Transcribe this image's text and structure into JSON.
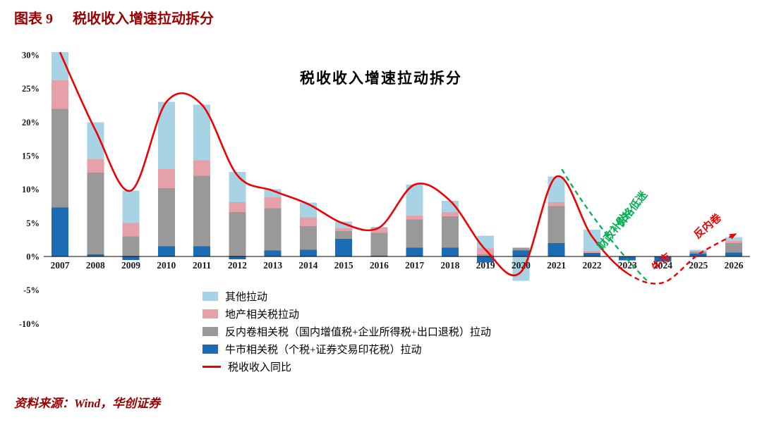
{
  "header": {
    "figure_label": "图表 9",
    "title": "税收收入增速拉动拆分"
  },
  "source": "资料来源：Wind，华创证券",
  "colors": {
    "accent_dark_red": "#990000",
    "line_red": "#F00000",
    "annotation_green": "#00B050",
    "bar_other": "#A8D3E4",
    "bar_property": "#E5A0A8",
    "bar_anti_involution": "#999999",
    "bar_bull_market": "#1B6CB5"
  },
  "chart_data": {
    "type": "bar",
    "subtype": "stacked-bar-with-line",
    "title": "税收收入增速拉动拆分",
    "categories": [
      "2007",
      "2008",
      "2009",
      "2010",
      "2011",
      "2012",
      "2013",
      "2014",
      "2015",
      "2016",
      "2017",
      "2018",
      "2019",
      "2020",
      "2021",
      "2022",
      "2023",
      "2024",
      "2025",
      "2026"
    ],
    "y_axis": {
      "min": -10,
      "max": 30,
      "step": 5,
      "tick_suffix": "%",
      "grid": false
    },
    "legend_position": "bottom-left",
    "series": [
      {
        "name": "其他拉动",
        "type": "bar",
        "color": "#A8D3E4",
        "values": [
          4.2,
          5.5,
          4.8,
          10.0,
          8.3,
          4.5,
          1.2,
          2.2,
          1.0,
          0.1,
          4.6,
          1.7,
          1.9,
          -3.6,
          3.8,
          3.2,
          0,
          0,
          0.2,
          0.6
        ]
      },
      {
        "name": "地产相关税拉动",
        "type": "bar",
        "color": "#E5A0A8",
        "values": [
          4.2,
          2.0,
          2.0,
          2.8,
          2.3,
          1.5,
          1.6,
          1.3,
          0.4,
          0.8,
          0.6,
          0.6,
          0.9,
          0,
          0.6,
          0.3,
          0,
          0,
          0.1,
          0.3
        ]
      },
      {
        "name": "反内卷相关税（国内增值税+企业所得税+出口退税）拉动",
        "type": "bar",
        "color": "#999999",
        "values": [
          14.7,
          12.2,
          3.0,
          8.7,
          10.5,
          6.6,
          6.3,
          3.5,
          1.2,
          3.4,
          4.2,
          4.7,
          0.3,
          0.4,
          5.5,
          0,
          0,
          0,
          0.3,
          1.4
        ]
      },
      {
        "name": "牛市相关税（个税+证券交易印花税）拉动",
        "type": "bar",
        "color": "#1B6CB5",
        "values": [
          7.3,
          0.3,
          -0.5,
          1.5,
          1.5,
          -0.4,
          0.9,
          1.0,
          2.6,
          0.1,
          1.3,
          1.3,
          -0.9,
          0.9,
          2.0,
          0.5,
          -0.6,
          -0.8,
          0.4,
          0.6
        ]
      },
      {
        "name": "税收收入同比",
        "type": "line",
        "color": "#F00000",
        "dashed_from_index": 16,
        "arrow_end": true,
        "values": [
          30.4,
          18.8,
          9.8,
          23.0,
          22.6,
          12.1,
          9.8,
          7.8,
          4.9,
          4.3,
          10.7,
          8.3,
          1.0,
          -2.3,
          11.9,
          3.0,
          -2.5,
          -3.9,
          0.3,
          3.2
        ]
      }
    ],
    "annotations": [
      {
        "text": "价格低迷",
        "color": "#00B050"
      },
      {
        "text": "财政补贴",
        "color": "#00B050"
      },
      {
        "text": "牛市",
        "color": "#F00000"
      },
      {
        "text": "反内卷",
        "color": "#F00000"
      }
    ],
    "annotation_lines": [
      {
        "name": "green-guide",
        "color": "#00B050",
        "dashed": true,
        "points_index_value": [
          [
            14.15,
            13.0
          ],
          [
            16.55,
            -3.6
          ]
        ]
      }
    ]
  }
}
